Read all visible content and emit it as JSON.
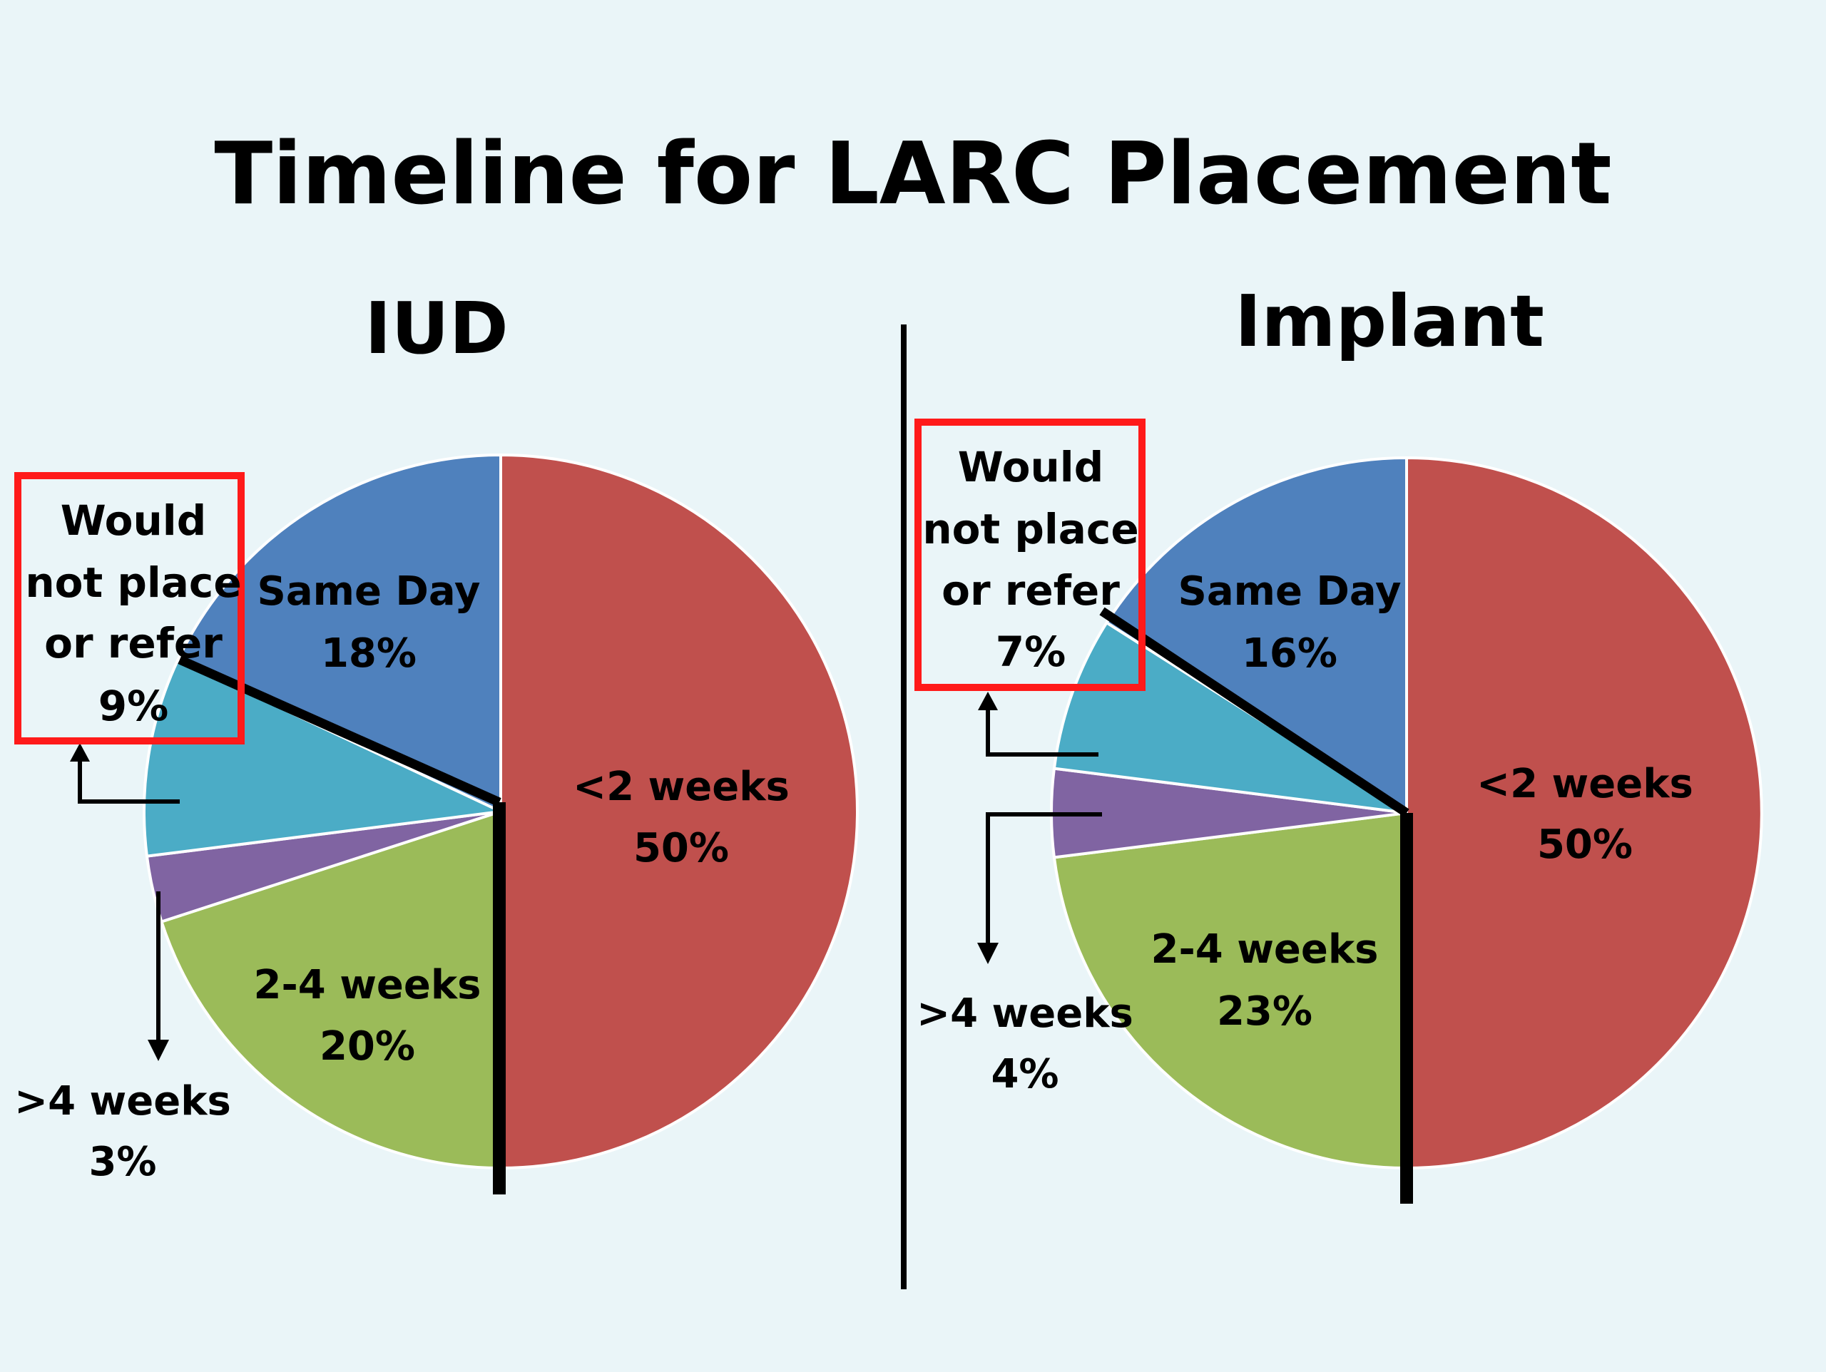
{
  "title": "Timeline for LARC Placement",
  "colors": {
    "background": "#eaf5f8",
    "lt2weeks": "#c0504d",
    "weeks2to4": "#9bbb59",
    "gt4weeks": "#8064a2",
    "wouldnot": "#4bacc6",
    "sameday": "#4f81bd",
    "highlight": "#ff1a1a"
  },
  "chart_data": [
    {
      "type": "pie",
      "title": "IUD",
      "categories": [
        "<2 weeks",
        "2-4 weeks",
        ">4 weeks",
        "Would not place or refer",
        "Same Day"
      ],
      "values": [
        50,
        20,
        3,
        9,
        18
      ],
      "labels": {
        "lt2weeks": {
          "name": "<2 weeks",
          "value": "50%"
        },
        "weeks2to4": {
          "name": "2-4 weeks",
          "value": "20%"
        },
        "gt4weeks": {
          "name": ">4 weeks",
          "value": "3%"
        },
        "wouldnot": {
          "lines": [
            "Would",
            "not place",
            "or refer"
          ],
          "value": "9%"
        },
        "sameday": {
          "name": "Same Day",
          "value": "18%"
        }
      }
    },
    {
      "type": "pie",
      "title": "Implant",
      "categories": [
        "<2 weeks",
        "2-4 weeks",
        ">4 weeks",
        "Would not place or refer",
        "Same Day"
      ],
      "values": [
        50,
        23,
        4,
        7,
        16
      ],
      "labels": {
        "lt2weeks": {
          "name": "<2 weeks",
          "value": "50%"
        },
        "weeks2to4": {
          "name": "2-4 weeks",
          "value": "23%"
        },
        "gt4weeks": {
          "name": ">4 weeks",
          "value": "4%"
        },
        "wouldnot": {
          "lines": [
            "Would",
            "not place",
            "or refer"
          ],
          "value": "7%"
        },
        "sameday": {
          "name": "Same Day",
          "value": "16%"
        }
      }
    }
  ]
}
